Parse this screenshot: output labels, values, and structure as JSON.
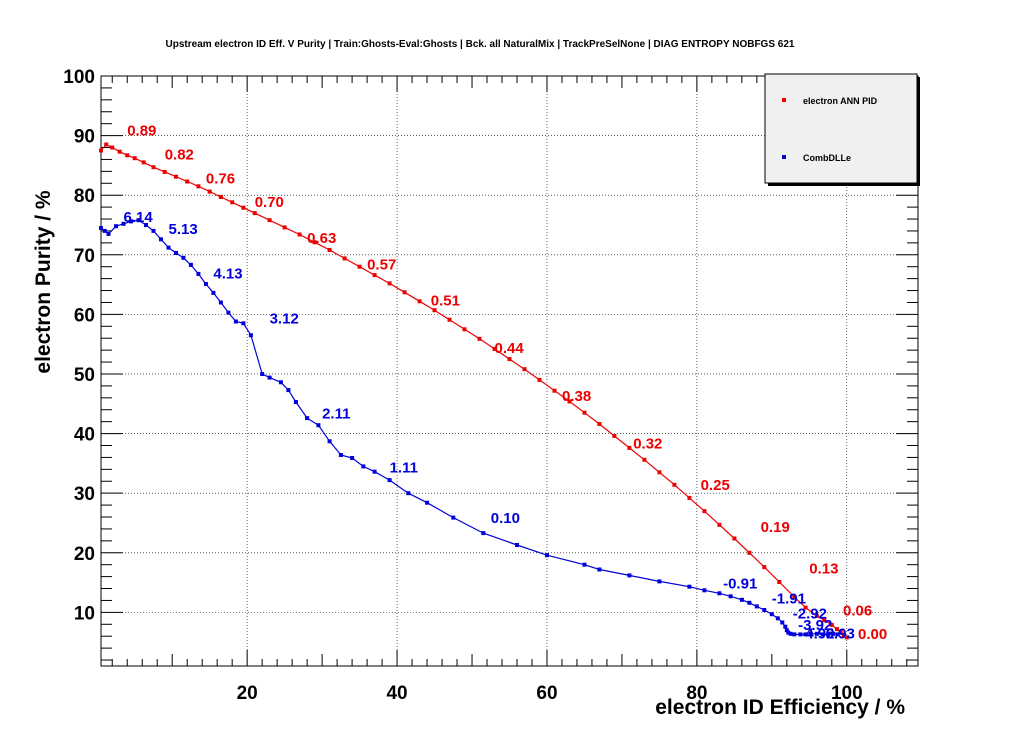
{
  "chart_data": {
    "type": "line",
    "title": "Upstream electron ID Eff. V Purity | Train:Ghosts-Eval:Ghosts | Bck. all NaturalMix | TrackPreSelNone | DIAG ENTROPY NOBFGS 621",
    "xlabel": "electron ID Efficiency / %",
    "ylabel": "electron Purity / %",
    "xlim": [
      0.5,
      109.5
    ],
    "ylim": [
      1,
      100
    ],
    "x_ticks": [
      "20",
      "40",
      "60",
      "80",
      "100"
    ],
    "y_ticks": [
      "10",
      "20",
      "30",
      "40",
      "50",
      "60",
      "70",
      "80",
      "90",
      "100"
    ],
    "grid": true,
    "legend_position": "top-right",
    "series": [
      {
        "name": "electron ANN PID",
        "color": "#ee0000",
        "x": [
          0.5,
          1.2,
          2.0,
          3.0,
          4.0,
          5.0,
          6.2,
          7.5,
          9.0,
          10.5,
          12.0,
          13.5,
          15.0,
          16.5,
          18.0,
          19.5,
          21.0,
          23.0,
          25.0,
          27.0,
          29.0,
          31.0,
          33.0,
          35.0,
          37.0,
          39.0,
          41.0,
          43.0,
          45.0,
          47.0,
          49.0,
          51.0,
          53.0,
          55.0,
          57.0,
          59.0,
          61.0,
          63.0,
          65.0,
          67.0,
          69.0,
          71.0,
          73.0,
          75.0,
          77.0,
          79.0,
          81.0,
          83.0,
          85.0,
          87.0,
          89.0,
          91.0,
          93.0,
          94.5,
          96.0,
          97.0,
          98.0,
          98.7,
          99.2,
          99.6,
          100.0
        ],
        "y": [
          87.5,
          88.5,
          88.0,
          87.3,
          86.7,
          86.2,
          85.5,
          84.7,
          83.9,
          83.1,
          82.3,
          81.5,
          80.6,
          79.7,
          78.8,
          77.9,
          77.0,
          75.8,
          74.6,
          73.4,
          72.1,
          70.8,
          69.4,
          68.0,
          66.6,
          65.2,
          63.7,
          62.2,
          60.7,
          59.1,
          57.5,
          55.9,
          54.2,
          52.5,
          50.8,
          49.0,
          47.2,
          45.4,
          43.5,
          41.6,
          39.6,
          37.6,
          35.6,
          33.5,
          31.4,
          29.2,
          27.0,
          24.7,
          22.4,
          20.0,
          17.6,
          15.1,
          12.6,
          10.8,
          9.4,
          8.7,
          7.9,
          7.2,
          6.7,
          6.2,
          5.8
        ]
      },
      {
        "name": "CombDLLe",
        "color": "#0000dd",
        "x": [
          0.5,
          1.0,
          1.5,
          2.5,
          3.5,
          4.5,
          5.5,
          6.5,
          7.5,
          8.5,
          9.5,
          10.5,
          11.5,
          12.5,
          13.5,
          14.5,
          15.5,
          16.5,
          17.5,
          18.5,
          19.5,
          20.5,
          22.0,
          23.0,
          24.5,
          25.5,
          26.5,
          28.0,
          29.5,
          31.0,
          32.5,
          34.0,
          35.5,
          37.0,
          39.0,
          41.5,
          44.0,
          47.5,
          51.5,
          56.0,
          60.0,
          65.0,
          67.0,
          71.0,
          75.0,
          79.0,
          81.0,
          83.0,
          84.5,
          86.0,
          87.0,
          88.0,
          89.0,
          90.0,
          90.8,
          91.4,
          91.8,
          92.0,
          92.2,
          92.5,
          93.0,
          93.8,
          94.5,
          95.2,
          96.0,
          96.8,
          97.5,
          98.2,
          98.8
        ],
        "y": [
          74.5,
          74.0,
          73.5,
          74.8,
          75.2,
          75.6,
          75.8,
          75.0,
          74.0,
          72.6,
          71.2,
          70.3,
          69.5,
          68.3,
          66.8,
          65.1,
          63.6,
          62.0,
          60.3,
          58.8,
          58.5,
          56.5,
          50.0,
          49.4,
          48.6,
          47.3,
          45.3,
          42.6,
          41.4,
          38.7,
          36.4,
          35.9,
          34.5,
          33.6,
          32.2,
          30.0,
          28.4,
          25.9,
          23.3,
          21.3,
          19.6,
          18.0,
          17.2,
          16.2,
          15.2,
          14.3,
          13.7,
          13.2,
          12.7,
          12.1,
          11.6,
          11.0,
          10.4,
          9.7,
          9.0,
          8.3,
          7.6,
          7.0,
          6.6,
          6.4,
          6.3,
          6.3,
          6.3,
          6.4,
          6.4,
          6.3,
          6.3,
          6.4,
          6.3
        ]
      }
    ],
    "annotations": [
      {
        "text": "0.89",
        "x": 4.0,
        "y": 90.0,
        "series": 0
      },
      {
        "text": "0.82",
        "x": 9.0,
        "y": 86.0,
        "series": 0
      },
      {
        "text": "0.76",
        "x": 14.5,
        "y": 82.0,
        "series": 0
      },
      {
        "text": "0.70",
        "x": 21.0,
        "y": 78.0,
        "series": 0
      },
      {
        "text": "0.63",
        "x": 28.0,
        "y": 72.0,
        "series": 0
      },
      {
        "text": "0.57",
        "x": 36.0,
        "y": 67.5,
        "series": 0
      },
      {
        "text": "0.51",
        "x": 44.5,
        "y": 61.5,
        "series": 0
      },
      {
        "text": "0.44",
        "x": 53.0,
        "y": 53.5,
        "series": 0
      },
      {
        "text": "0.38",
        "x": 62.0,
        "y": 45.5,
        "series": 0
      },
      {
        "text": "0.32",
        "x": 71.5,
        "y": 37.5,
        "series": 0
      },
      {
        "text": "0.25",
        "x": 80.5,
        "y": 30.5,
        "series": 0
      },
      {
        "text": "0.19",
        "x": 88.5,
        "y": 23.5,
        "series": 0
      },
      {
        "text": "0.13",
        "x": 95.0,
        "y": 16.5,
        "series": 0
      },
      {
        "text": "0.06",
        "x": 99.5,
        "y": 9.5,
        "series": 0
      },
      {
        "text": "0.00",
        "x": 101.5,
        "y": 5.5,
        "series": 0
      },
      {
        "text": "6.14",
        "x": 3.5,
        "y": 75.5,
        "series": 1
      },
      {
        "text": "5.13",
        "x": 9.5,
        "y": 73.5,
        "series": 1
      },
      {
        "text": "4.13",
        "x": 15.5,
        "y": 66.0,
        "series": 1
      },
      {
        "text": "3.12",
        "x": 23.0,
        "y": 58.5,
        "series": 1
      },
      {
        "text": "2.11",
        "x": 30.0,
        "y": 42.5,
        "series": 1
      },
      {
        "text": "1.11",
        "x": 39.0,
        "y": 33.5,
        "series": 1
      },
      {
        "text": "0.10",
        "x": 52.5,
        "y": 25.0,
        "series": 1
      },
      {
        "text": "-0.91",
        "x": 83.5,
        "y": 14.0,
        "series": 1
      },
      {
        "text": "-1.91",
        "x": 90.0,
        "y": 11.5,
        "series": 1
      },
      {
        "text": "-2.92",
        "x": 92.8,
        "y": 9.0,
        "series": 1
      },
      {
        "text": "-3.92",
        "x": 93.5,
        "y": 7.0,
        "series": 1
      },
      {
        "text": "-4.92",
        "x": 93.8,
        "y": 5.6,
        "series": 1
      },
      {
        "text": "-5.93",
        "x": 96.5,
        "y": 5.6,
        "series": 1
      }
    ]
  }
}
